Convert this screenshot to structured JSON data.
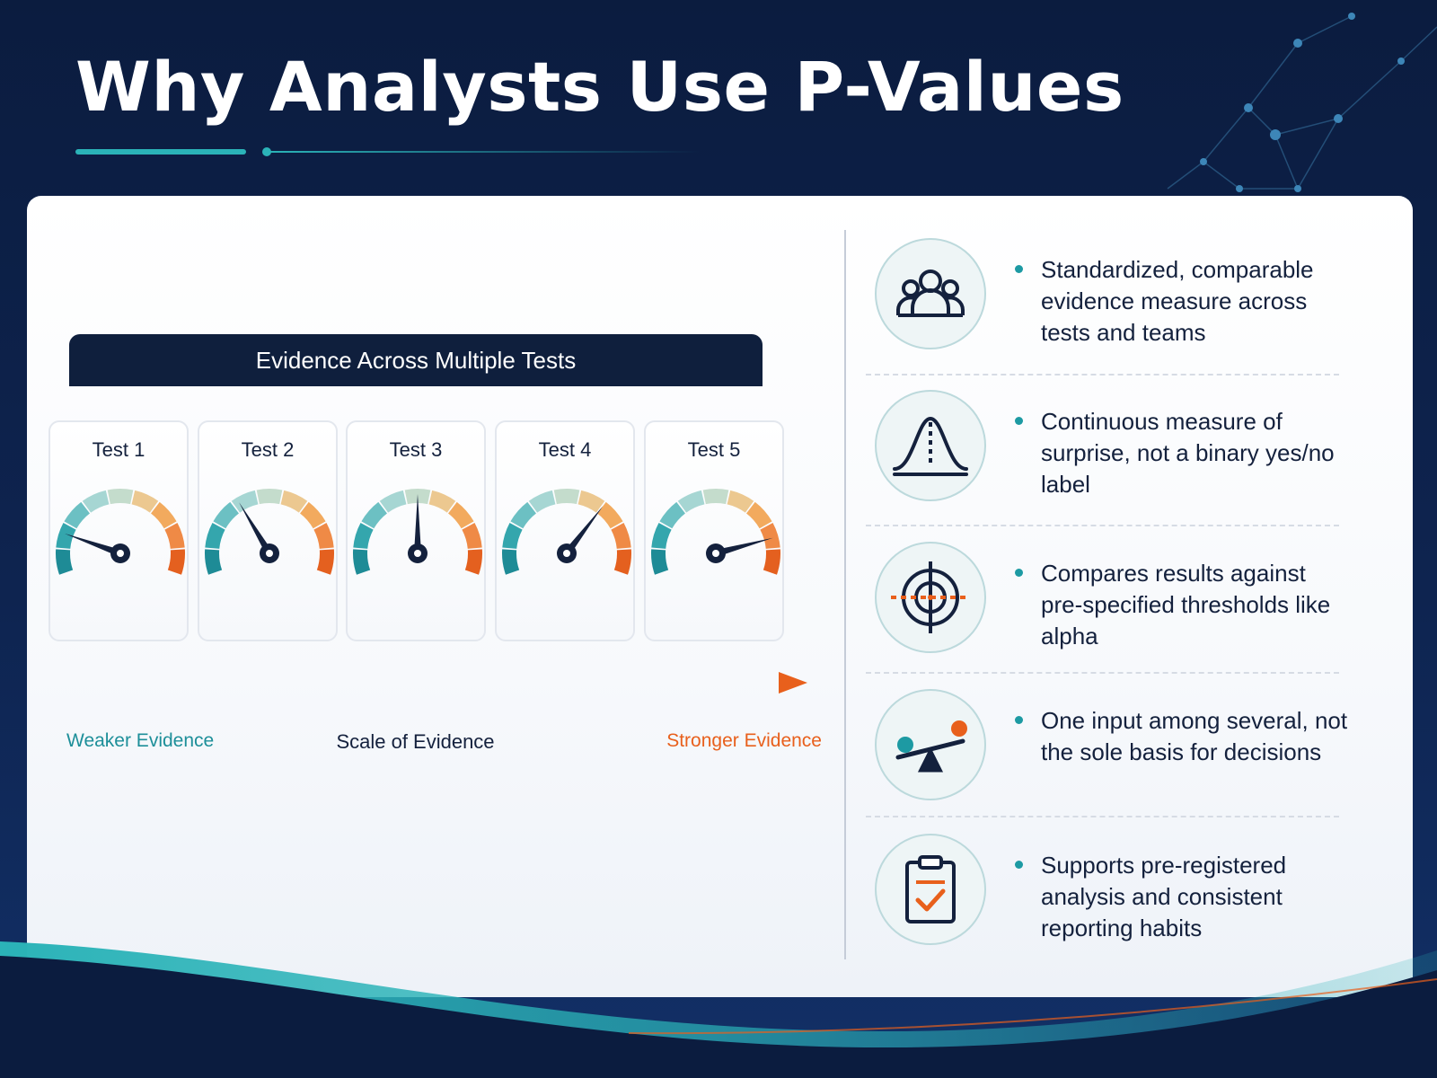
{
  "title": "Why Analysts Use P-Values",
  "panel_header": "Evidence Across Multiple Tests",
  "gauges": [
    {
      "label": "Test 1",
      "level": 0.18
    },
    {
      "label": "Test 2",
      "level": 0.36
    },
    {
      "label": "Test 3",
      "level": 0.5
    },
    {
      "label": "Test 4",
      "level": 0.67
    },
    {
      "label": "Test 5",
      "level": 0.84
    }
  ],
  "scale": {
    "weak": "Weaker Evidence",
    "middle": "Scale of Evidence",
    "strong": "Stronger Evidence"
  },
  "benefits": [
    {
      "icon": "team-icon",
      "text": "Standardized, comparable evidence measure across tests and teams"
    },
    {
      "icon": "bell-curve-icon",
      "text": "Continuous measure of surprise, not a binary yes/no label"
    },
    {
      "icon": "target-icon",
      "text": "Compares results against pre-specified thresholds like alpha"
    },
    {
      "icon": "balance-seesaw-icon",
      "text": "One input among several, not the sole basis for decisions"
    },
    {
      "icon": "clipboard-check-icon",
      "text": "Supports pre-registered analysis and consistent reporting habits"
    }
  ],
  "colors": {
    "teal": "#1d9aa3",
    "orange": "#e8601c",
    "navy": "#0f1f3d",
    "gauge_segments": [
      "#1e8b96",
      "#34a6ad",
      "#6cc0c3",
      "#a6d6d3",
      "#c4dccc",
      "#ecc890",
      "#f2aa5e",
      "#ef8a46",
      "#e4601f"
    ]
  }
}
